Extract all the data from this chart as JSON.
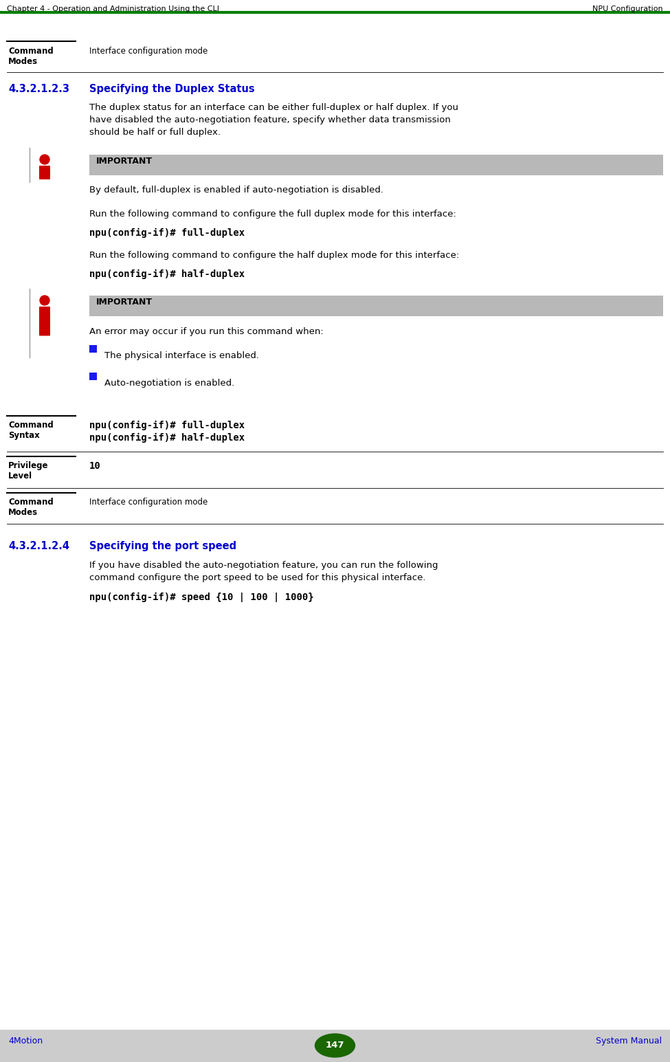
{
  "header_left": "Chapter 4 - Operation and Administration Using the CLI",
  "header_right": "NPU Configuration",
  "header_line_color": "#008000",
  "footer_left": "4Motion",
  "footer_center": "147",
  "footer_right": "System Manual",
  "footer_bg": "#cccccc",
  "footer_text_color": "#0000cc",
  "footer_badge_color": "#1a6600",
  "section_number": "4.3.2.1.2.3",
  "section_title": "Specifying the Duplex Status",
  "section_title_color": "#0000cc",
  "section_number2": "4.3.2.1.2.4",
  "section_title2": "Specifying the port speed",
  "body_text1_line1": "The duplex status for an interface can be either full-duplex or half duplex. If you",
  "body_text1_line2": "have disabled the auto-negotiation feature, specify whether data transmission",
  "body_text1_line3": "should be half or full duplex.",
  "important_bg": "#b8b8b8",
  "important_label": "IMPORTANT",
  "important_text1": "By default, full-duplex is enabled if auto-negotiation is disabled.",
  "run_text1": "Run the following command to configure the full duplex mode for this interface:",
  "cmd1": "npu(config-if)# full-duplex",
  "run_text2": "Run the following command to configure the half duplex mode for this interface:",
  "cmd2": "npu(config-if)# half-duplex",
  "important_text2_intro": "An error may occur if you run this command when:",
  "bullet1": "The physical interface is enabled.",
  "bullet2": "Auto-negotiation is enabled.",
  "bullet_color": "#1a1aee",
  "cmd_syntax_value1": "npu(config-if)# full-duplex",
  "cmd_syntax_value2": "npu(config-if)# half-duplex",
  "privilege_value": "10",
  "cmd_modes_value": "Interface configuration mode",
  "cmd_modes_value_top": "Interface configuration mode",
  "body_text2_line1": "If you have disabled the auto-negotiation feature, you can run the following",
  "body_text2_line2": "command configure the port speed to be used for this physical interface.",
  "cmd3": "npu(config-if)# speed {10 | 100 | 1000}",
  "bg_color": "#ffffff",
  "icon_body_color": "#cc0000",
  "icon_head_color": "#cc0000",
  "icon_line_color": "#999999",
  "table_short_line_color": "#000000"
}
